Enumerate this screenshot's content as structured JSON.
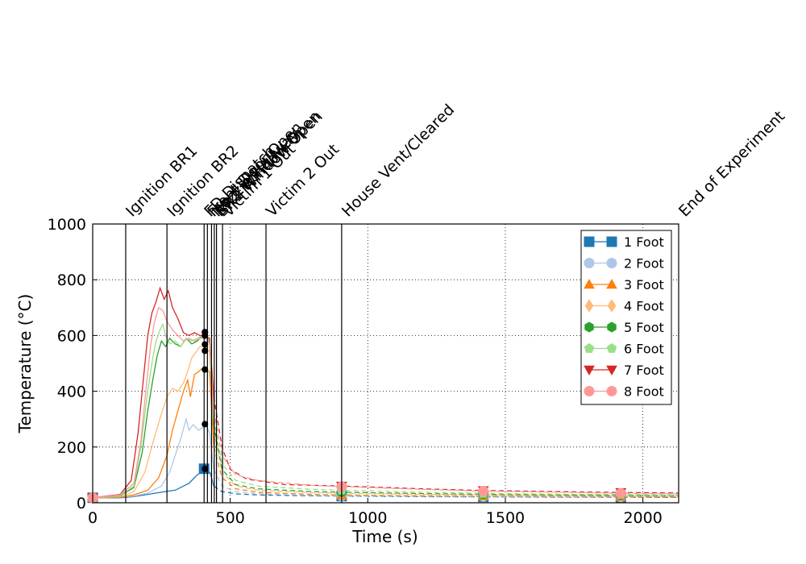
{
  "chart_data": {
    "type": "line",
    "title": "",
    "xlabel": "Time (s)",
    "ylabel": "Temperature (°C)",
    "xlim": [
      0,
      2130
    ],
    "ylim": [
      0,
      1000
    ],
    "xticks": [
      0,
      500,
      1000,
      1500,
      2000
    ],
    "yticks": [
      0,
      200,
      400,
      600,
      800,
      1000
    ],
    "grid": true,
    "legend_position": "top-right",
    "events": [
      {
        "label": "Ignition BR1",
        "x": 120
      },
      {
        "label": "Ignition BR2",
        "x": 270
      },
      {
        "label": "FD Dispatch",
        "x": 405
      },
      {
        "label": "Front Door Open",
        "x": 417
      },
      {
        "label": "Nozzle Hallway",
        "x": 432
      },
      {
        "label": "BR2 Window Open",
        "x": 442
      },
      {
        "label": "BR1 Window Open",
        "x": 450
      },
      {
        "label": "Victim 1 Out",
        "x": 472
      },
      {
        "label": "Victim 2 Out",
        "x": 630
      },
      {
        "label": "House Vent/Cleared",
        "x": 905
      },
      {
        "label": "End of Experiment",
        "x": 2130
      }
    ],
    "series": [
      {
        "name": "1 Foot",
        "color": "#1f77b4",
        "marker": "square",
        "solid": [
          [
            0,
            18
          ],
          [
            100,
            18
          ],
          [
            150,
            22
          ],
          [
            200,
            30
          ],
          [
            250,
            38
          ],
          [
            300,
            45
          ],
          [
            350,
            70
          ],
          [
            380,
            100
          ],
          [
            395,
            110
          ],
          [
            405,
            122
          ],
          [
            415,
            120
          ],
          [
            428,
            105
          ],
          [
            440,
            60
          ]
        ],
        "dashed": [
          [
            440,
            60
          ],
          [
            470,
            40
          ],
          [
            520,
            32
          ],
          [
            600,
            28
          ],
          [
            800,
            25
          ],
          [
            905,
            24
          ],
          [
            1200,
            22
          ],
          [
            1420,
            21
          ],
          [
            1700,
            20
          ],
          [
            1920,
            20
          ],
          [
            2130,
            19
          ]
        ]
      },
      {
        "name": "2 Foot",
        "color": "#aec7e8",
        "marker": "circle",
        "solid": [
          [
            0,
            18
          ],
          [
            100,
            20
          ],
          [
            150,
            24
          ],
          [
            200,
            35
          ],
          [
            250,
            60
          ],
          [
            280,
            110
          ],
          [
            300,
            170
          ],
          [
            320,
            230
          ],
          [
            340,
            300
          ],
          [
            350,
            260
          ],
          [
            365,
            280
          ],
          [
            385,
            260
          ],
          [
            400,
            270
          ],
          [
            410,
            282
          ],
          [
            425,
            250
          ],
          [
            440,
            120
          ]
        ],
        "dashed": [
          [
            440,
            120
          ],
          [
            470,
            60
          ],
          [
            520,
            40
          ],
          [
            600,
            32
          ],
          [
            800,
            27
          ],
          [
            905,
            25
          ],
          [
            1200,
            23
          ],
          [
            1420,
            22
          ],
          [
            1700,
            21
          ],
          [
            1920,
            21
          ],
          [
            2130,
            20
          ]
        ]
      },
      {
        "name": "3 Foot",
        "color": "#ff7f0e",
        "marker": "triangle-up",
        "solid": [
          [
            0,
            18
          ],
          [
            100,
            20
          ],
          [
            150,
            28
          ],
          [
            200,
            45
          ],
          [
            240,
            90
          ],
          [
            270,
            170
          ],
          [
            290,
            260
          ],
          [
            310,
            330
          ],
          [
            330,
            400
          ],
          [
            345,
            440
          ],
          [
            355,
            380
          ],
          [
            370,
            460
          ],
          [
            385,
            470
          ],
          [
            395,
            480
          ],
          [
            410,
            478
          ],
          [
            425,
            470
          ],
          [
            440,
            200
          ]
        ],
        "dashed": [
          [
            440,
            200
          ],
          [
            470,
            90
          ],
          [
            520,
            50
          ],
          [
            600,
            38
          ],
          [
            800,
            30
          ],
          [
            905,
            28
          ],
          [
            1200,
            25
          ],
          [
            1420,
            24
          ],
          [
            1700,
            23
          ],
          [
            1920,
            22
          ],
          [
            2130,
            21
          ]
        ]
      },
      {
        "name": "4 Foot",
        "color": "#ffbb78",
        "marker": "diamond",
        "solid": [
          [
            0,
            18
          ],
          [
            100,
            22
          ],
          [
            150,
            40
          ],
          [
            190,
            110
          ],
          [
            220,
            220
          ],
          [
            250,
            320
          ],
          [
            270,
            380
          ],
          [
            290,
            410
          ],
          [
            310,
            400
          ],
          [
            330,
            430
          ],
          [
            345,
            470
          ],
          [
            360,
            520
          ],
          [
            375,
            540
          ],
          [
            390,
            560
          ],
          [
            410,
            560
          ],
          [
            425,
            540
          ],
          [
            440,
            260
          ]
        ],
        "dashed": [
          [
            440,
            260
          ],
          [
            470,
            110
          ],
          [
            520,
            60
          ],
          [
            600,
            45
          ],
          [
            800,
            36
          ],
          [
            905,
            34
          ],
          [
            1200,
            30
          ],
          [
            1420,
            28
          ],
          [
            1700,
            26
          ],
          [
            1920,
            25
          ],
          [
            2130,
            24
          ]
        ]
      },
      {
        "name": "5 Foot",
        "color": "#2ca02c",
        "marker": "hexagon",
        "solid": [
          [
            0,
            18
          ],
          [
            100,
            25
          ],
          [
            150,
            55
          ],
          [
            180,
            180
          ],
          [
            200,
            330
          ],
          [
            220,
            450
          ],
          [
            235,
            530
          ],
          [
            250,
            580
          ],
          [
            265,
            560
          ],
          [
            280,
            590
          ],
          [
            300,
            570
          ],
          [
            320,
            560
          ],
          [
            340,
            590
          ],
          [
            360,
            570
          ],
          [
            380,
            580
          ],
          [
            400,
            600
          ],
          [
            410,
            610
          ],
          [
            425,
            570
          ],
          [
            440,
            280
          ]
        ],
        "dashed": [
          [
            440,
            280
          ],
          [
            470,
            120
          ],
          [
            520,
            65
          ],
          [
            600,
            50
          ],
          [
            800,
            40
          ],
          [
            905,
            38
          ],
          [
            1200,
            33
          ],
          [
            1420,
            30
          ],
          [
            1700,
            28
          ],
          [
            1920,
            27
          ],
          [
            2130,
            26
          ]
        ]
      },
      {
        "name": "6 Foot",
        "color": "#98df8a",
        "marker": "pentagon",
        "solid": [
          [
            0,
            18
          ],
          [
            100,
            26
          ],
          [
            150,
            60
          ],
          [
            175,
            200
          ],
          [
            200,
            400
          ],
          [
            215,
            500
          ],
          [
            230,
            580
          ],
          [
            245,
            620
          ],
          [
            255,
            640
          ],
          [
            265,
            600
          ],
          [
            280,
            570
          ],
          [
            300,
            580
          ],
          [
            320,
            560
          ],
          [
            340,
            590
          ],
          [
            360,
            580
          ],
          [
            380,
            590
          ],
          [
            400,
            600
          ],
          [
            410,
            605
          ],
          [
            425,
            580
          ],
          [
            440,
            300
          ]
        ],
        "dashed": [
          [
            440,
            300
          ],
          [
            470,
            140
          ],
          [
            520,
            80
          ],
          [
            600,
            60
          ],
          [
            800,
            48
          ],
          [
            905,
            45
          ],
          [
            1200,
            38
          ],
          [
            1420,
            34
          ],
          [
            1700,
            31
          ],
          [
            1920,
            30
          ],
          [
            2130,
            28
          ]
        ]
      },
      {
        "name": "7 Foot",
        "color": "#d62728",
        "marker": "triangle-down",
        "solid": [
          [
            0,
            18
          ],
          [
            100,
            30
          ],
          [
            140,
            80
          ],
          [
            165,
            250
          ],
          [
            185,
            450
          ],
          [
            200,
            600
          ],
          [
            215,
            680
          ],
          [
            230,
            720
          ],
          [
            245,
            770
          ],
          [
            260,
            730
          ],
          [
            275,
            760
          ],
          [
            290,
            700
          ],
          [
            310,
            660
          ],
          [
            330,
            610
          ],
          [
            350,
            600
          ],
          [
            370,
            610
          ],
          [
            390,
            600
          ],
          [
            405,
            600
          ],
          [
            425,
            590
          ],
          [
            440,
            380
          ]
        ],
        "dashed": [
          [
            440,
            380
          ],
          [
            470,
            200
          ],
          [
            500,
            120
          ],
          [
            560,
            85
          ],
          [
            700,
            65
          ],
          [
            905,
            60
          ],
          [
            1200,
            50
          ],
          [
            1420,
            44
          ],
          [
            1700,
            40
          ],
          [
            1920,
            37
          ],
          [
            2130,
            35
          ]
        ]
      },
      {
        "name": "8 Foot",
        "color": "#ff9896",
        "marker": "circle",
        "solid": [
          [
            0,
            18
          ],
          [
            100,
            28
          ],
          [
            150,
            70
          ],
          [
            175,
            220
          ],
          [
            195,
            420
          ],
          [
            210,
            560
          ],
          [
            225,
            650
          ],
          [
            240,
            700
          ],
          [
            255,
            690
          ],
          [
            270,
            650
          ],
          [
            290,
            620
          ],
          [
            310,
            600
          ],
          [
            330,
            580
          ],
          [
            350,
            590
          ],
          [
            370,
            580
          ],
          [
            390,
            590
          ],
          [
            405,
            590
          ],
          [
            425,
            580
          ],
          [
            440,
            330
          ]
        ],
        "dashed": [
          [
            440,
            330
          ],
          [
            470,
            170
          ],
          [
            520,
            100
          ],
          [
            600,
            80
          ],
          [
            800,
            62
          ],
          [
            905,
            58
          ],
          [
            1200,
            48
          ],
          [
            1420,
            42
          ],
          [
            1700,
            38
          ],
          [
            1920,
            34
          ],
          [
            2130,
            32
          ]
        ]
      }
    ],
    "end_dots": [
      122,
      282,
      478,
      545,
      568,
      600,
      612,
      612
    ]
  }
}
